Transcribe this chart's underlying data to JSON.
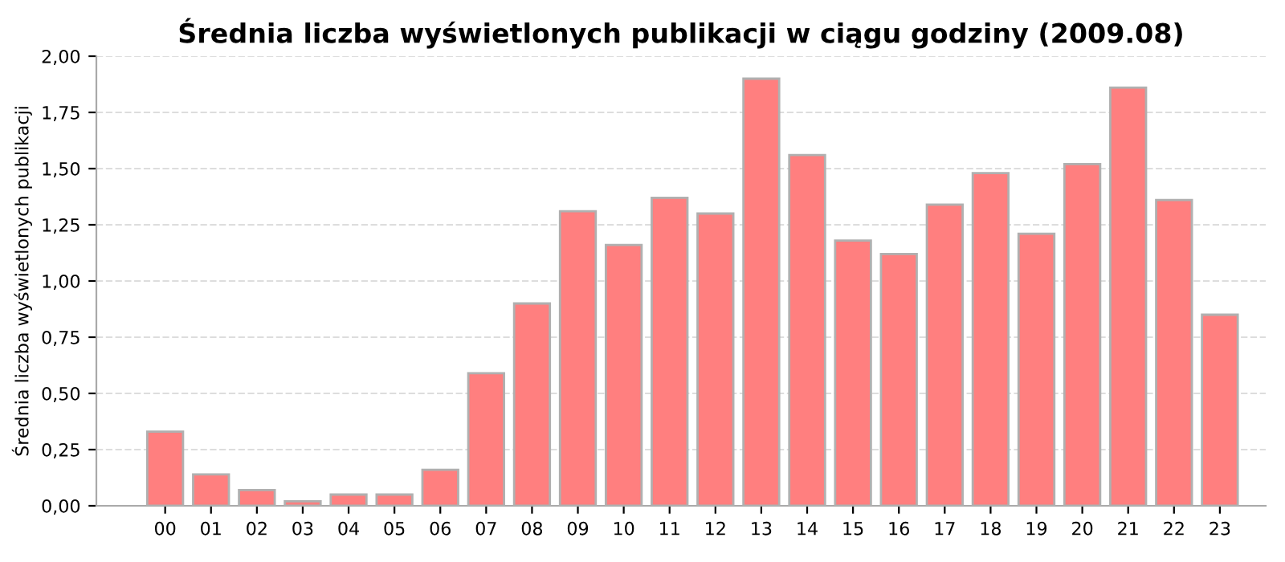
{
  "chart_data": {
    "type": "bar",
    "title": "Średnia liczba wyświetlonych publikacji w ciągu godziny (2009.08)",
    "ylabel": "Średnia liczba wyświetlonych publikacji",
    "categories": [
      "00",
      "01",
      "02",
      "03",
      "04",
      "05",
      "06",
      "07",
      "08",
      "09",
      "10",
      "11",
      "12",
      "13",
      "14",
      "15",
      "16",
      "17",
      "18",
      "19",
      "20",
      "21",
      "22",
      "23"
    ],
    "values": [
      0.33,
      0.14,
      0.07,
      0.02,
      0.05,
      0.05,
      0.16,
      0.59,
      0.9,
      1.31,
      1.16,
      1.37,
      1.3,
      1.9,
      1.56,
      1.18,
      1.12,
      1.34,
      1.48,
      1.21,
      1.52,
      1.86,
      1.36,
      0.85
    ],
    "color": "#ff7f7f",
    "ylim": [
      0,
      2
    ],
    "yticks": [
      {
        "value": 0,
        "label": "0,00"
      },
      {
        "value": 0.25,
        "label": "0,25"
      },
      {
        "value": 0.5,
        "label": "0,50"
      },
      {
        "value": 0.75,
        "label": "0,75"
      },
      {
        "value": 1,
        "label": "1,00"
      },
      {
        "value": 1.25,
        "label": "1,25"
      },
      {
        "value": 1.5,
        "label": "1,50"
      },
      {
        "value": 1.75,
        "label": "1,75"
      },
      {
        "value": 2,
        "label": "2,00"
      }
    ],
    "grid": "y"
  }
}
